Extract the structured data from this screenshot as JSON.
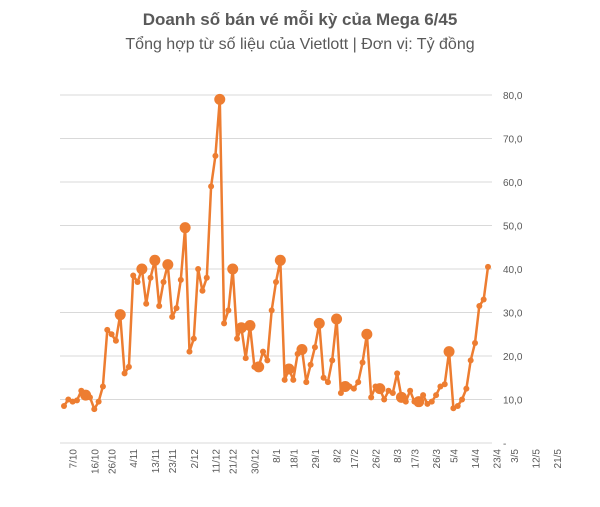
{
  "chart_data": {
    "type": "line",
    "title": "Doanh số bán vé mỗi kỳ của Mega 6/45",
    "subtitle": "Tổng hợp từ số liệu của Vietlott | Đơn vị: Tỷ đồng",
    "xlabel": "",
    "ylabel": "",
    "ylim": [
      0,
      80
    ],
    "y_ticks": [
      "-",
      "10,0",
      "20,0",
      "30,0",
      "40,0",
      "50,0",
      "60,0",
      "70,0",
      "80,0"
    ],
    "y_tick_values": [
      0,
      10,
      20,
      30,
      40,
      50,
      60,
      70,
      80
    ],
    "grid": true,
    "legend": "none",
    "x_tick_labels": [
      {
        "index": 2,
        "label": "7/10"
      },
      {
        "index": 7,
        "label": "16/10"
      },
      {
        "index": 11,
        "label": "26/10"
      },
      {
        "index": 16,
        "label": "4/11"
      },
      {
        "index": 21,
        "label": "13/11"
      },
      {
        "index": 25,
        "label": "23/11"
      },
      {
        "index": 30,
        "label": "2/12"
      },
      {
        "index": 35,
        "label": "11/12"
      },
      {
        "index": 39,
        "label": "21/12"
      },
      {
        "index": 44,
        "label": "30/12"
      },
      {
        "index": 49,
        "label": "8/1"
      },
      {
        "index": 53,
        "label": "18/1"
      },
      {
        "index": 58,
        "label": "29/1"
      },
      {
        "index": 63,
        "label": "8/2"
      },
      {
        "index": 67,
        "label": "17/2"
      },
      {
        "index": 72,
        "label": "26/2"
      },
      {
        "index": 77,
        "label": "8/3"
      },
      {
        "index": 81,
        "label": "17/3"
      },
      {
        "index": 86,
        "label": "26/3"
      },
      {
        "index": 90,
        "label": "5/4"
      },
      {
        "index": 95,
        "label": "14/4"
      },
      {
        "index": 100,
        "label": "23/4"
      },
      {
        "index": 104,
        "label": "3/5"
      },
      {
        "index": 109,
        "label": "12/5"
      },
      {
        "index": 114,
        "label": "21/5"
      }
    ],
    "values": [
      8.5,
      10,
      9.5,
      9.8,
      12,
      11,
      10.5,
      7.8,
      9.5,
      13,
      26,
      25,
      23.5,
      29.5,
      16,
      17.5,
      38.5,
      37,
      40,
      32,
      38,
      42,
      31.5,
      37,
      41,
      29,
      31,
      37.5,
      49.5,
      21,
      24,
      40,
      35,
      38,
      59,
      66,
      79,
      27.5,
      30.5,
      40,
      24,
      26.5,
      19.5,
      27,
      17.5,
      17.5,
      21,
      19,
      30.5,
      37,
      42,
      14.5,
      17,
      14.5,
      20.5,
      21.5,
      14,
      18,
      22,
      27.5,
      15,
      14,
      19,
      28.5,
      11.5,
      13,
      13,
      12.5,
      14,
      18.5,
      25,
      10.5,
      13,
      12.5,
      10,
      12,
      11.5,
      16,
      10.5,
      9.5,
      12,
      9.5,
      9.5,
      11,
      9,
      9.5,
      11,
      13,
      13.5,
      21,
      8,
      8.5,
      10,
      12.5,
      19,
      23,
      31.5,
      33,
      40.5
    ],
    "large_markers": [
      5,
      13,
      18,
      21,
      24,
      28,
      36,
      39,
      41,
      43,
      45,
      50,
      52,
      55,
      59,
      63,
      65,
      70,
      73,
      78,
      82,
      89
    ]
  }
}
